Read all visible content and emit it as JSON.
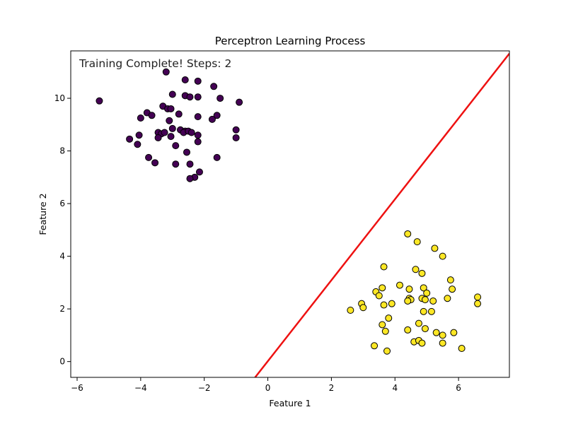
{
  "chart_data": {
    "type": "scatter",
    "title": "Perceptron Learning Process",
    "xlabel": "Feature 1",
    "ylabel": "Feature 2",
    "xlim": [
      -6.2,
      7.6
    ],
    "ylim": [
      -0.6,
      11.8
    ],
    "xticks": [
      -6,
      -4,
      -2,
      0,
      2,
      4,
      6
    ],
    "yticks": [
      0,
      2,
      4,
      6,
      8,
      10
    ],
    "grid": false,
    "annotation": "Training Complete! Steps: 2",
    "colors": {
      "class0": "#440154",
      "class1": "#fde725",
      "edge": "#000000",
      "boundary": "#ee1111"
    },
    "boundary": {
      "x1": -0.4,
      "y1": -0.6,
      "x2": 7.6,
      "y2": 11.7
    },
    "series": [
      {
        "class": 0,
        "points": [
          [
            -5.3,
            9.9
          ],
          [
            -3.2,
            11.0
          ],
          [
            -2.6,
            10.7
          ],
          [
            -2.2,
            10.65
          ],
          [
            -1.7,
            10.45
          ],
          [
            -3.0,
            10.15
          ],
          [
            -2.6,
            10.1
          ],
          [
            -2.45,
            10.05
          ],
          [
            -2.2,
            10.05
          ],
          [
            -1.5,
            10.0
          ],
          [
            -0.9,
            9.85
          ],
          [
            -3.3,
            9.7
          ],
          [
            -3.15,
            9.6
          ],
          [
            -3.05,
            9.6
          ],
          [
            -3.8,
            9.45
          ],
          [
            -3.65,
            9.35
          ],
          [
            -2.8,
            9.4
          ],
          [
            -1.6,
            9.35
          ],
          [
            -4.0,
            9.25
          ],
          [
            -2.2,
            9.3
          ],
          [
            -1.75,
            9.2
          ],
          [
            -3.1,
            9.15
          ],
          [
            -3.0,
            8.85
          ],
          [
            -2.75,
            8.8
          ],
          [
            -2.6,
            8.75
          ],
          [
            -3.45,
            8.7
          ],
          [
            -3.35,
            8.65
          ],
          [
            -3.25,
            8.7
          ],
          [
            -2.65,
            8.7
          ],
          [
            -2.5,
            8.75
          ],
          [
            -2.4,
            8.7
          ],
          [
            -2.2,
            8.6
          ],
          [
            -1.0,
            8.8
          ],
          [
            -3.45,
            8.5
          ],
          [
            -4.05,
            8.6
          ],
          [
            -3.05,
            8.55
          ],
          [
            -4.35,
            8.45
          ],
          [
            -2.2,
            8.35
          ],
          [
            -1.0,
            8.5
          ],
          [
            -4.1,
            8.25
          ],
          [
            -2.9,
            8.2
          ],
          [
            -2.55,
            7.95
          ],
          [
            -3.75,
            7.75
          ],
          [
            -1.6,
            7.75
          ],
          [
            -3.55,
            7.55
          ],
          [
            -2.9,
            7.5
          ],
          [
            -2.45,
            7.5
          ],
          [
            -2.15,
            7.2
          ],
          [
            -2.3,
            7.0
          ],
          [
            -2.45,
            6.95
          ]
        ]
      },
      {
        "class": 1,
        "points": [
          [
            4.4,
            4.85
          ],
          [
            4.7,
            4.55
          ],
          [
            5.25,
            4.3
          ],
          [
            5.5,
            4.0
          ],
          [
            3.65,
            3.6
          ],
          [
            4.65,
            3.5
          ],
          [
            4.85,
            3.35
          ],
          [
            5.75,
            3.1
          ],
          [
            4.15,
            2.9
          ],
          [
            3.6,
            2.8
          ],
          [
            4.9,
            2.8
          ],
          [
            4.45,
            2.75
          ],
          [
            5.8,
            2.75
          ],
          [
            3.4,
            2.65
          ],
          [
            5.0,
            2.6
          ],
          [
            3.5,
            2.5
          ],
          [
            4.45,
            2.4
          ],
          [
            4.85,
            2.4
          ],
          [
            4.5,
            2.35
          ],
          [
            4.95,
            2.35
          ],
          [
            5.2,
            2.3
          ],
          [
            4.4,
            2.3
          ],
          [
            6.6,
            2.45
          ],
          [
            5.65,
            2.4
          ],
          [
            2.95,
            2.2
          ],
          [
            3.65,
            2.15
          ],
          [
            3.9,
            2.2
          ],
          [
            6.6,
            2.2
          ],
          [
            3.0,
            2.05
          ],
          [
            2.6,
            1.95
          ],
          [
            4.9,
            1.9
          ],
          [
            5.15,
            1.9
          ],
          [
            3.8,
            1.65
          ],
          [
            4.75,
            1.45
          ],
          [
            3.6,
            1.4
          ],
          [
            4.4,
            1.2
          ],
          [
            4.95,
            1.25
          ],
          [
            3.7,
            1.15
          ],
          [
            5.3,
            1.1
          ],
          [
            5.5,
            1.0
          ],
          [
            5.85,
            1.1
          ],
          [
            4.6,
            0.75
          ],
          [
            4.75,
            0.8
          ],
          [
            4.85,
            0.7
          ],
          [
            5.5,
            0.7
          ],
          [
            3.35,
            0.6
          ],
          [
            6.1,
            0.5
          ],
          [
            3.75,
            0.4
          ]
        ]
      }
    ]
  }
}
